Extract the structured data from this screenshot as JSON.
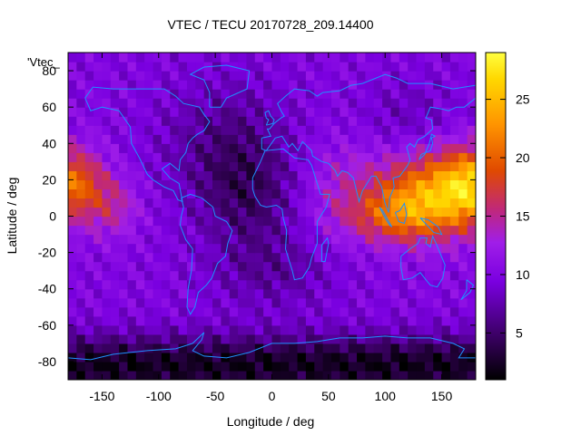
{
  "chart_data": {
    "type": "heatmap",
    "title": "VTEC / TECU 20170728_209.14400",
    "xlabel": "Longitude / deg",
    "ylabel": "Latitude / deg",
    "legend_label": "'Vtec_",
    "xlim": [
      -180,
      180
    ],
    "ylim": [
      -90,
      90
    ],
    "x_ticks": [
      -150,
      -100,
      -50,
      0,
      50,
      100,
      150
    ],
    "y_ticks": [
      -80,
      -60,
      -40,
      -20,
      0,
      20,
      40,
      60,
      80
    ],
    "colorbar": {
      "range": [
        1,
        29
      ],
      "ticks": [
        5,
        10,
        15,
        20,
        25
      ],
      "palette": [
        "#000000",
        "#3d0068",
        "#7a00e0",
        "#a01ee8",
        "#c0287a",
        "#e04a00",
        "#ff9400",
        "#ffd800",
        "#ffff40"
      ]
    },
    "grid": false,
    "overlay": "world coastlines",
    "overlay_color": "#1e90ff",
    "field_summary": [
      {
        "region": "Pacific equatorial (lon -180 to -140, lat 0 to 30)",
        "tecu": 18
      },
      {
        "region": "East Asia / W Pacific (lon 100 to 180, lat -15 to 30)",
        "tecu": 22
      },
      {
        "region": "Americas / Atlantic mid-latitudes",
        "tecu": 7
      },
      {
        "region": "Antarctic / high southern latitudes",
        "tecu": 2
      }
    ]
  }
}
